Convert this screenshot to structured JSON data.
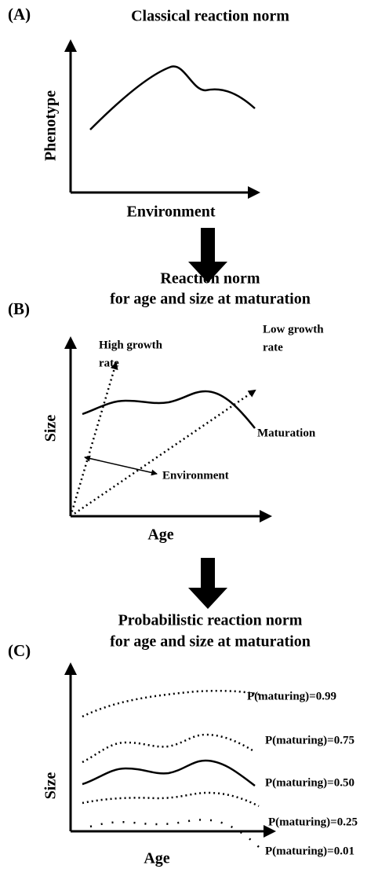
{
  "panel_a": {
    "letter": "(A)",
    "title": "Classical reaction norm",
    "y_label": "Phenotype",
    "x_label": "Environment"
  },
  "panel_b": {
    "letter": "(B)",
    "title_lines": [
      "Reaction norm",
      "for age and size at maturation"
    ],
    "y_label": "Size",
    "x_label": "Age",
    "annotations": {
      "high_growth": [
        "High growth",
        "rate"
      ],
      "low_growth": [
        "Low growth",
        "rate"
      ],
      "maturation": "Maturation",
      "environment": "Environment"
    }
  },
  "panel_c": {
    "letter": "(C)",
    "title_lines": [
      "Probabilistic reaction norm",
      "for age and size at maturation"
    ],
    "y_label": "Size",
    "x_label": "Age",
    "curve_labels": [
      "P(maturing)=0.99",
      "P(maturing)=0.75",
      "P(maturing)=0.50",
      "P(maturing)=0.25",
      "P(maturing)=0.01"
    ]
  }
}
